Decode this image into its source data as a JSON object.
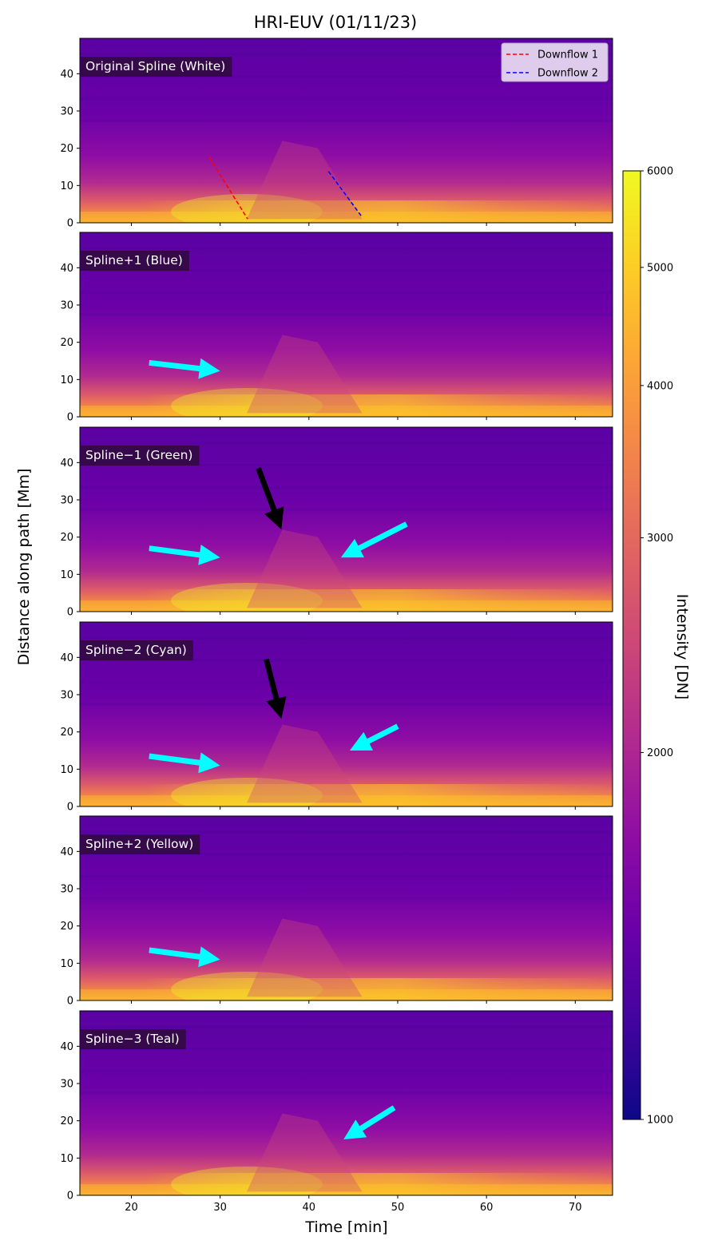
{
  "chart_data": {
    "type": "heatmap",
    "title": "HRI-EUV (01/11/23)",
    "xlabel": "Time [min]",
    "ylabel": "Distance along path [Mm]",
    "xlim": [
      14.2,
      74.2
    ],
    "ylim": [
      0,
      49.5
    ],
    "xticks": [
      20,
      30,
      40,
      50,
      60,
      70
    ],
    "yticks": [
      0,
      10,
      20,
      30,
      40
    ],
    "grid": false,
    "colorbar": {
      "label": "Intensity [DN]",
      "colormap": "plasma",
      "range": [
        1000,
        6000
      ],
      "ticks": [
        1000,
        2000,
        3000,
        4000,
        5000,
        6000
      ]
    },
    "legend": {
      "placement": "upper right of top panel",
      "entries": [
        {
          "label": "Downflow 1",
          "color": "#ff0000",
          "style": "dashed"
        },
        {
          "label": "Downflow 2",
          "color": "#0000ff",
          "style": "dashed"
        }
      ]
    },
    "downflow_lines": [
      {
        "name": "Downflow 1",
        "color": "#ff0000",
        "x": [
          28.8,
          33.1
        ],
        "y": [
          17.5,
          1.0
        ]
      },
      {
        "name": "Downflow 2",
        "color": "#0000ff",
        "x": [
          42.2,
          46.0
        ],
        "y": [
          13.8,
          1.5
        ]
      }
    ],
    "panels": [
      {
        "label": "Original Spline (White)",
        "arrows": []
      },
      {
        "label": "Spline+1 (Blue)",
        "arrows": [
          {
            "color": "#00ffff",
            "from": [
              22,
              14.5
            ],
            "to": [
              30,
              12.3
            ]
          }
        ]
      },
      {
        "label": "Spline−1 (Green)",
        "arrows": [
          {
            "color": "#00ffff",
            "from": [
              22,
              17
            ],
            "to": [
              30,
              14.5
            ]
          },
          {
            "color": "#000000",
            "from": [
              34.3,
              38.5
            ],
            "to": [
              36.9,
              22
            ]
          },
          {
            "color": "#00ffff",
            "from": [
              51,
              23.5
            ],
            "to": [
              43.6,
              14.5
            ]
          }
        ]
      },
      {
        "label": "Spline−2 (Cyan)",
        "arrows": [
          {
            "color": "#00ffff",
            "from": [
              22,
              13.5
            ],
            "to": [
              30,
              11
            ]
          },
          {
            "color": "#000000",
            "from": [
              35.2,
              39.5
            ],
            "to": [
              36.9,
              23.5
            ]
          },
          {
            "color": "#00ffff",
            "from": [
              50,
              21.5
            ],
            "to": [
              44.6,
              15
            ]
          }
        ]
      },
      {
        "label": "Spline+2 (Yellow)",
        "arrows": [
          {
            "color": "#00ffff",
            "from": [
              22,
              13.5
            ],
            "to": [
              30,
              11
            ]
          }
        ]
      },
      {
        "label": "Spline−3 (Teal)",
        "arrows": [
          {
            "color": "#00ffff",
            "from": [
              49.6,
              23.5
            ],
            "to": [
              43.9,
              15
            ]
          }
        ]
      }
    ]
  }
}
